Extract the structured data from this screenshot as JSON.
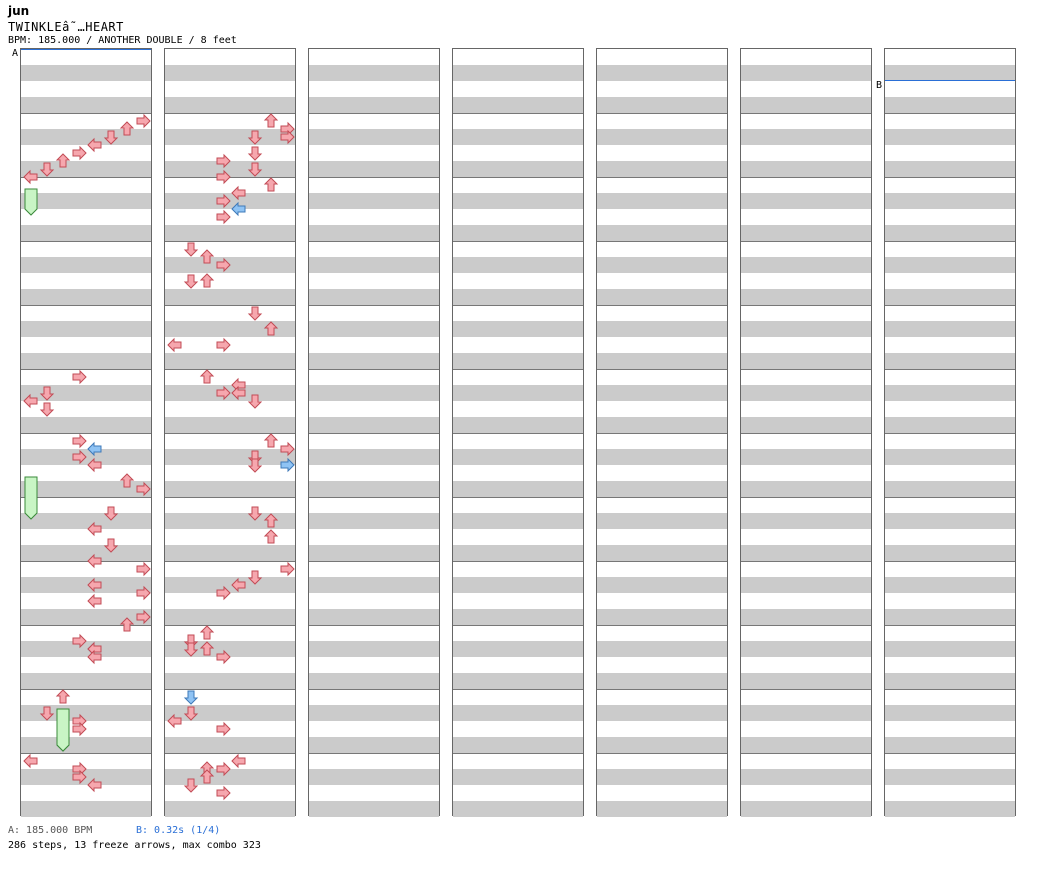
{
  "header": {
    "artist": "jun",
    "title": "TWINKLEâ˜…HEART",
    "bpm_line": "BPM: 185.000 / ANOTHER DOUBLE / 8 feet"
  },
  "markers": {
    "a": "A",
    "b": "B"
  },
  "colors": {
    "red": "#f6a7ae",
    "red_stroke": "#c24b55",
    "blue": "#8fc3f4",
    "blue_stroke": "#3d78b8",
    "freeze": "#c9f5c5",
    "freeze_stroke": "#3a8a3a",
    "stripe": "#cbcbcb",
    "bpm_b_line": "#2a6fd6"
  },
  "footer": {
    "bpm_a": "A: 185.000 BPM",
    "bpm_b": "B: 0.32s (1/4)",
    "summary": "286 steps, 13 freeze arrows, max combo 323"
  },
  "chart_data": {
    "type": "step-chart",
    "columns": 7,
    "measures_per_column": 12,
    "lanes": 8,
    "lane_directions": [
      "left",
      "down",
      "up",
      "right",
      "left",
      "down",
      "up",
      "right"
    ],
    "notes": [
      [
        1,
        0,
        7,
        "r"
      ],
      [
        1,
        1,
        6,
        "r"
      ],
      [
        1,
        2,
        5,
        "r"
      ],
      [
        1,
        3,
        4,
        "r"
      ],
      [
        1,
        4,
        3,
        "r"
      ],
      [
        1,
        5,
        2,
        "r"
      ],
      [
        1,
        6,
        1,
        "r"
      ],
      [
        1,
        7,
        0,
        "r"
      ],
      [
        5,
        0,
        3,
        "r"
      ],
      [
        5,
        2,
        1,
        "r"
      ],
      [
        5,
        3,
        0,
        "r"
      ],
      [
        5,
        4,
        1,
        "r"
      ],
      [
        6,
        0,
        3,
        "r"
      ],
      [
        6,
        1,
        4,
        "b"
      ],
      [
        6,
        2,
        3,
        "r"
      ],
      [
        6,
        3,
        4,
        "r"
      ],
      [
        6,
        5,
        6,
        "r"
      ],
      [
        6,
        6,
        7,
        "r"
      ],
      [
        7,
        1,
        5,
        "r"
      ],
      [
        7,
        3,
        4,
        "r"
      ],
      [
        7,
        5,
        5,
        "r"
      ],
      [
        7,
        7,
        4,
        "r"
      ],
      [
        8,
        0,
        7,
        "r"
      ],
      [
        8,
        2,
        4,
        "r"
      ],
      [
        8,
        3,
        7,
        "r"
      ],
      [
        8,
        4,
        4,
        "r"
      ],
      [
        8,
        6,
        7,
        "r"
      ],
      [
        8,
        7,
        6,
        "r"
      ],
      [
        9,
        1,
        3,
        "r"
      ],
      [
        9,
        2,
        4,
        "b"
      ],
      [
        9,
        2,
        4,
        "r"
      ],
      [
        9,
        3,
        4,
        "r"
      ],
      [
        10,
        0,
        2,
        "r"
      ],
      [
        10,
        2,
        1,
        "r"
      ],
      [
        10,
        3,
        3,
        "r"
      ],
      [
        10,
        4,
        3,
        "r"
      ],
      [
        11,
        0,
        0,
        "r"
      ],
      [
        11,
        1,
        3,
        "r"
      ],
      [
        11,
        2,
        3,
        "r"
      ],
      [
        11,
        3,
        4,
        "r"
      ],
      [
        13,
        0,
        6,
        "r"
      ],
      [
        13,
        1,
        7,
        "r"
      ],
      [
        13,
        2,
        5,
        "r"
      ],
      [
        13,
        2,
        7,
        "r"
      ],
      [
        13,
        4,
        5,
        "r"
      ],
      [
        13,
        5,
        3,
        "r"
      ],
      [
        13,
        6,
        5,
        "r"
      ],
      [
        13,
        7,
        3,
        "r"
      ],
      [
        14,
        0,
        6,
        "r"
      ],
      [
        14,
        1,
        4,
        "r"
      ],
      [
        14,
        2,
        3,
        "r"
      ],
      [
        14,
        3,
        4,
        "b"
      ],
      [
        14,
        4,
        3,
        "r"
      ],
      [
        15,
        0,
        1,
        "r"
      ],
      [
        15,
        1,
        2,
        "r"
      ],
      [
        15,
        2,
        3,
        "r"
      ],
      [
        15,
        4,
        2,
        "r"
      ],
      [
        15,
        4,
        1,
        "r"
      ],
      [
        16,
        0,
        5,
        "r"
      ],
      [
        16,
        2,
        6,
        "r"
      ],
      [
        16,
        4,
        0,
        "r"
      ],
      [
        16,
        4,
        3,
        "r"
      ],
      [
        17,
        0,
        2,
        "r"
      ],
      [
        17,
        1,
        4,
        "r"
      ],
      [
        17,
        2,
        3,
        "r"
      ],
      [
        17,
        2,
        4,
        "r"
      ],
      [
        17,
        3,
        5,
        "r"
      ],
      [
        18,
        0,
        6,
        "r"
      ],
      [
        18,
        1,
        7,
        "r"
      ],
      [
        18,
        2,
        5,
        "r"
      ],
      [
        18,
        3,
        7,
        "b"
      ],
      [
        18,
        3,
        5,
        "r"
      ],
      [
        19,
        1,
        5,
        "r"
      ],
      [
        19,
        2,
        6,
        "r"
      ],
      [
        19,
        4,
        6,
        "r"
      ],
      [
        20,
        0,
        7,
        "r"
      ],
      [
        20,
        1,
        5,
        "r"
      ],
      [
        20,
        2,
        4,
        "r"
      ],
      [
        20,
        3,
        3,
        "r"
      ],
      [
        21,
        0,
        2,
        "r"
      ],
      [
        21,
        1,
        1,
        "r"
      ],
      [
        21,
        2,
        2,
        "r"
      ],
      [
        21,
        2,
        1,
        "r"
      ],
      [
        21,
        3,
        3,
        "r"
      ],
      [
        22,
        0,
        1,
        "b"
      ],
      [
        22,
        2,
        1,
        "r"
      ],
      [
        22,
        3,
        0,
        "r"
      ],
      [
        22,
        4,
        3,
        "r"
      ],
      [
        23,
        0,
        4,
        "r"
      ],
      [
        23,
        1,
        2,
        "r"
      ],
      [
        23,
        1,
        3,
        "r"
      ],
      [
        23,
        2,
        2,
        "r"
      ],
      [
        23,
        3,
        1,
        "r"
      ],
      [
        23,
        4,
        3,
        "r"
      ]
    ],
    "freezes": [
      [
        2,
        0,
        1,
        2,
        "a"
      ],
      [
        6,
        0,
        5,
        4,
        "a"
      ],
      [
        10,
        2,
        2,
        4,
        "a"
      ],
      [
        10,
        2,
        2,
        4,
        "b"
      ]
    ]
  }
}
